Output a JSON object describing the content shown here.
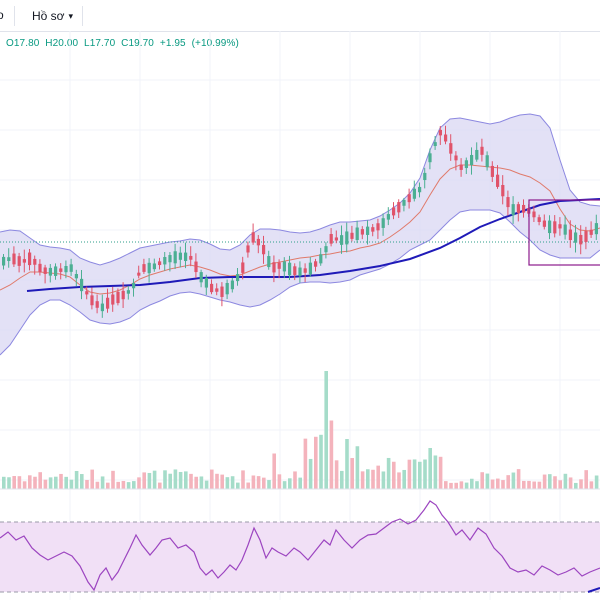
{
  "toolbar": {
    "left_clip_label": "o",
    "profile_label": "Hồ sơ"
  },
  "legend": {
    "open": "O17.80",
    "high": "H20.00",
    "low": "L17.70",
    "close": "C19.70",
    "change": "+1.95",
    "change_pct": "(+10.99%)",
    "color": "#089981"
  },
  "colors": {
    "up": "#4caf93",
    "down": "#e0536a",
    "vol_up": "#a5dcc9",
    "vol_down": "#f4b3bc",
    "bb_fill": "#d9d7f3",
    "bb_band": "#8c88e0",
    "bb_basis": "#e07a6b",
    "ma": "#1f1ab8",
    "rsi_fill": "#f1e0f6",
    "rsi_line": "#9c45c0",
    "highlight_box": "#8c1a8c"
  }
}
